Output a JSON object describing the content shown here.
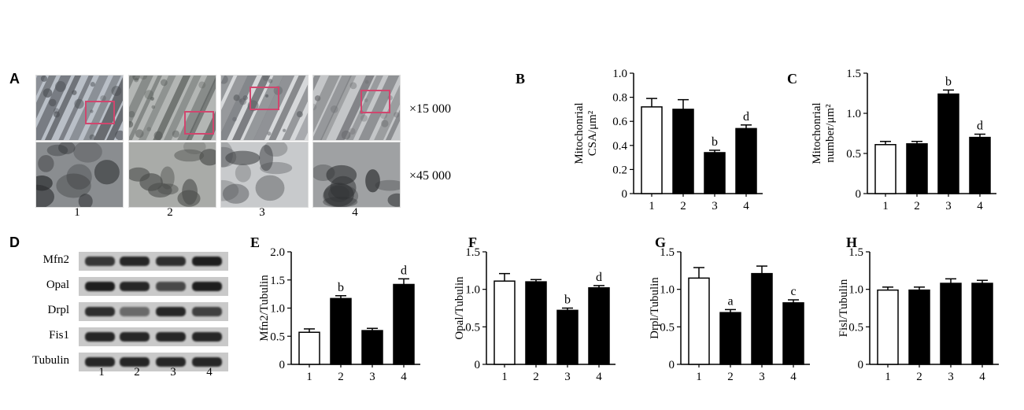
{
  "panels": {
    "A": {
      "letter": "A",
      "magnifications": [
        "×15 000",
        "×45 000"
      ],
      "lanes": [
        "1",
        "2",
        "3",
        "4"
      ]
    },
    "D": {
      "letter": "D",
      "rows": [
        {
          "label": "Mfn2",
          "intensity": [
            0.85,
            0.95,
            0.9,
            1.0
          ]
        },
        {
          "label": "Opal",
          "intensity": [
            1.0,
            0.95,
            0.75,
            1.0
          ]
        },
        {
          "label": "Drpl",
          "intensity": [
            0.9,
            0.55,
            0.95,
            0.8
          ]
        },
        {
          "label": "Fis1",
          "intensity": [
            0.95,
            0.95,
            0.95,
            0.95
          ]
        },
        {
          "label": "Tubulin",
          "intensity": [
            0.95,
            0.95,
            0.95,
            0.95
          ]
        }
      ],
      "lanes": [
        "1",
        "2",
        "3",
        "4"
      ]
    }
  },
  "colors": {
    "roi": "#d0466e",
    "bar_fill_dark": "#000000",
    "bar_fill_open": "#ffffff"
  },
  "chart_data": [
    {
      "id": "B",
      "letter": "B",
      "type": "bar",
      "categories": [
        "1",
        "2",
        "3",
        "4"
      ],
      "values": [
        0.72,
        0.7,
        0.34,
        0.54
      ],
      "errors": [
        0.07,
        0.08,
        0.02,
        0.03
      ],
      "annotations": [
        "",
        "",
        "b",
        "d"
      ],
      "ylabel": "Mitochonrial\nCSA/μm²",
      "ylim": [
        0,
        1.0
      ],
      "yticks": [
        0,
        0.2,
        0.4,
        0.6,
        0.8,
        1.0
      ],
      "yticklabels": [
        "0",
        "0.2",
        "0.4",
        "0.6",
        "0.8",
        "1.0"
      ]
    },
    {
      "id": "C",
      "letter": "C",
      "type": "bar",
      "categories": [
        "1",
        "2",
        "3",
        "4"
      ],
      "values": [
        0.61,
        0.62,
        1.24,
        0.7
      ],
      "errors": [
        0.04,
        0.03,
        0.05,
        0.04
      ],
      "annotations": [
        "",
        "",
        "b",
        "d"
      ],
      "ylabel": "Mitochonrial\nnumber/μm²",
      "ylim": [
        0,
        1.5
      ],
      "yticks": [
        0,
        0.5,
        1.0,
        1.5
      ],
      "yticklabels": [
        "0",
        "0.5",
        "1.0",
        "1.5"
      ]
    },
    {
      "id": "E",
      "letter": "E",
      "type": "bar",
      "categories": [
        "1",
        "2",
        "3",
        "4"
      ],
      "values": [
        0.57,
        1.17,
        0.6,
        1.42
      ],
      "errors": [
        0.06,
        0.05,
        0.04,
        0.1
      ],
      "annotations": [
        "",
        "b",
        "",
        "d"
      ],
      "ylabel": "Mfn2/Tubulin",
      "ylim": [
        0,
        2.0
      ],
      "yticks": [
        0,
        0.5,
        1.0,
        1.5,
        2.0
      ],
      "yticklabels": [
        "0",
        "0.5",
        "1.0",
        "1.5",
        "2.0"
      ]
    },
    {
      "id": "F",
      "letter": "F",
      "type": "bar",
      "categories": [
        "1",
        "2",
        "3",
        "4"
      ],
      "values": [
        1.11,
        1.1,
        0.72,
        1.02
      ],
      "errors": [
        0.1,
        0.03,
        0.03,
        0.03
      ],
      "annotations": [
        "",
        "",
        "b",
        "d"
      ],
      "ylabel": "Opal/Tubulin",
      "ylim": [
        0,
        1.5
      ],
      "yticks": [
        0,
        0.5,
        1.0,
        1.5
      ],
      "yticklabels": [
        "0",
        "0.5",
        "1.0",
        "1.5"
      ]
    },
    {
      "id": "G",
      "letter": "G",
      "type": "bar",
      "categories": [
        "1",
        "2",
        "3",
        "4"
      ],
      "values": [
        1.15,
        0.69,
        1.21,
        0.82
      ],
      "errors": [
        0.14,
        0.04,
        0.1,
        0.04
      ],
      "annotations": [
        "",
        "a",
        "",
        "c"
      ],
      "ylabel": "Drpl/Tubulin",
      "ylim": [
        0,
        1.5
      ],
      "yticks": [
        0,
        0.5,
        1.0,
        1.5
      ],
      "yticklabels": [
        "0",
        "0.5",
        "1.0",
        "1.5"
      ]
    },
    {
      "id": "H",
      "letter": "H",
      "type": "bar",
      "categories": [
        "1",
        "2",
        "3",
        "4"
      ],
      "values": [
        0.99,
        0.99,
        1.08,
        1.08
      ],
      "errors": [
        0.04,
        0.04,
        0.06,
        0.04
      ],
      "annotations": [
        "",
        "",
        "",
        ""
      ],
      "ylabel": "Fisl/Tubulin",
      "ylim": [
        0,
        1.5
      ],
      "yticks": [
        0,
        0.5,
        1.0,
        1.5
      ],
      "yticklabels": [
        "0",
        "0.5",
        "1.0",
        "1.5"
      ]
    }
  ]
}
